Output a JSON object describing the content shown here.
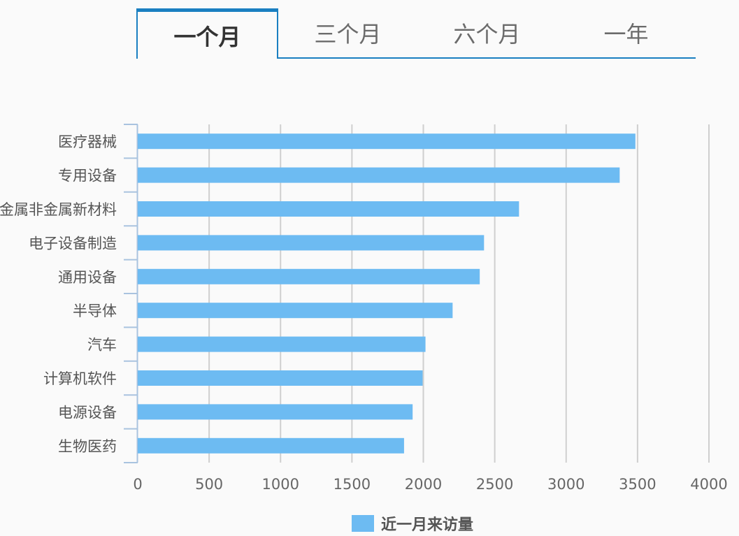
{
  "tabs": [
    {
      "label": "一个月",
      "active": true
    },
    {
      "label": "三个月",
      "active": false
    },
    {
      "label": "六个月",
      "active": false
    },
    {
      "label": "一年",
      "active": false
    }
  ],
  "colors": {
    "accent": "#1a7fc1",
    "bar": "#6dbbf2",
    "grid": "#cfcfcf",
    "axis": "#a9c3df",
    "text": "#555555"
  },
  "chart_data": {
    "type": "bar",
    "orientation": "horizontal",
    "categories": [
      "医疗器械",
      "专用设备",
      "金属非金属新材料",
      "电子设备制造",
      "通用设备",
      "半导体",
      "汽车",
      "计算机软件",
      "电源设备",
      "生物医药"
    ],
    "series": [
      {
        "name": "近一月来访量",
        "values": [
          3485,
          3375,
          2670,
          2425,
          2395,
          2205,
          2015,
          1995,
          1925,
          1865
        ]
      }
    ],
    "xlim": [
      0,
      4000
    ],
    "xticks": [
      0,
      500,
      1000,
      1500,
      2000,
      2500,
      3000,
      3500,
      4000
    ],
    "grid": true,
    "legend": "bottom-center"
  }
}
